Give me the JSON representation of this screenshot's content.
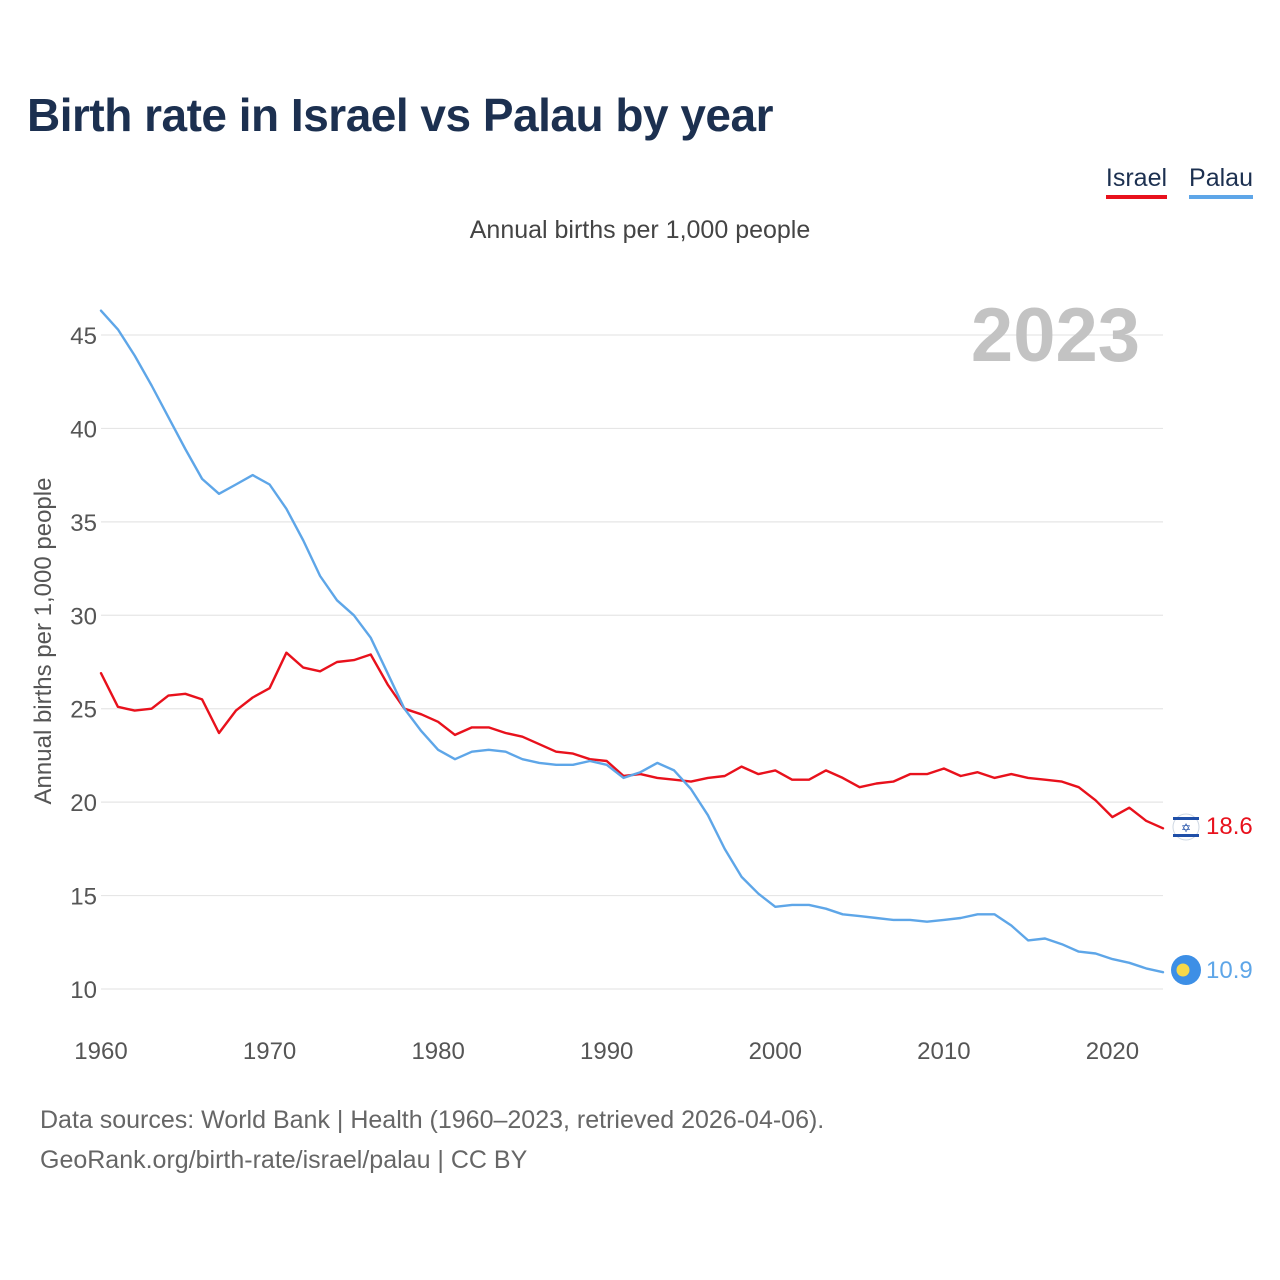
{
  "title": "Birth rate in Israel vs Palau by year",
  "legend": [
    {
      "name": "Israel",
      "color": "#e8111c"
    },
    {
      "name": "Palau",
      "color": "#5ea6e8"
    }
  ],
  "subtitle": "Annual births per 1,000 people",
  "year_label": "2023",
  "footer": {
    "line1": "Data sources: World Bank | Health (1960–2023, retrieved 2026-04-06).",
    "line2": "GeoRank.org/birth-rate/israel/palau | CC BY"
  },
  "chart_data": {
    "type": "line",
    "title": "Birth rate in Israel vs Palau by year",
    "xlabel": "",
    "ylabel": "Annual births per 1,000 people",
    "xlim": [
      1960,
      2023
    ],
    "ylim": [
      10,
      45
    ],
    "xticks": [
      1960,
      1970,
      1980,
      1990,
      2000,
      2010,
      2020
    ],
    "yticks": [
      10,
      15,
      20,
      25,
      30,
      35,
      40,
      45
    ],
    "grid": true,
    "x": [
      1960,
      1961,
      1962,
      1963,
      1964,
      1965,
      1966,
      1967,
      1968,
      1969,
      1970,
      1971,
      1972,
      1973,
      1974,
      1975,
      1976,
      1977,
      1978,
      1979,
      1980,
      1981,
      1982,
      1983,
      1984,
      1985,
      1986,
      1987,
      1988,
      1989,
      1990,
      1991,
      1992,
      1993,
      1994,
      1995,
      1996,
      1997,
      1998,
      1999,
      2000,
      2001,
      2002,
      2003,
      2004,
      2005,
      2006,
      2007,
      2008,
      2009,
      2010,
      2011,
      2012,
      2013,
      2014,
      2015,
      2016,
      2017,
      2018,
      2019,
      2020,
      2021,
      2022,
      2023
    ],
    "series": [
      {
        "name": "Israel",
        "color": "#e8111c",
        "end_label": "18.6",
        "values": [
          26.9,
          25.1,
          24.9,
          25.0,
          25.7,
          25.8,
          25.5,
          23.7,
          24.9,
          25.6,
          26.1,
          28.0,
          27.2,
          27.0,
          27.5,
          27.6,
          27.9,
          26.3,
          25.0,
          24.7,
          24.3,
          23.6,
          24.0,
          24.0,
          23.7,
          23.5,
          23.1,
          22.7,
          22.6,
          22.3,
          22.2,
          21.4,
          21.5,
          21.3,
          21.2,
          21.1,
          21.3,
          21.4,
          21.9,
          21.5,
          21.7,
          21.2,
          21.2,
          21.7,
          21.3,
          20.8,
          21.0,
          21.1,
          21.5,
          21.5,
          21.8,
          21.4,
          21.6,
          21.3,
          21.5,
          21.3,
          21.2,
          21.1,
          20.8,
          20.1,
          19.2,
          19.7,
          19.0,
          18.6
        ]
      },
      {
        "name": "Palau",
        "color": "#5ea6e8",
        "end_label": "10.9",
        "values": [
          46.3,
          45.3,
          43.9,
          42.3,
          40.6,
          38.9,
          37.3,
          36.5,
          37.0,
          37.5,
          37.0,
          35.7,
          34.0,
          32.1,
          30.8,
          30.0,
          28.8,
          26.9,
          25.0,
          23.8,
          22.8,
          22.3,
          22.7,
          22.8,
          22.7,
          22.3,
          22.1,
          22.0,
          22.0,
          22.2,
          22.0,
          21.3,
          21.6,
          22.1,
          21.7,
          20.7,
          19.3,
          17.5,
          16.0,
          15.1,
          14.4,
          14.5,
          14.5,
          14.3,
          14.0,
          13.9,
          13.8,
          13.7,
          13.7,
          13.6,
          13.7,
          13.8,
          14.0,
          14.0,
          13.4,
          12.6,
          12.7,
          12.4,
          12.0,
          11.9,
          11.6,
          11.4,
          11.1,
          10.9
        ]
      }
    ]
  }
}
